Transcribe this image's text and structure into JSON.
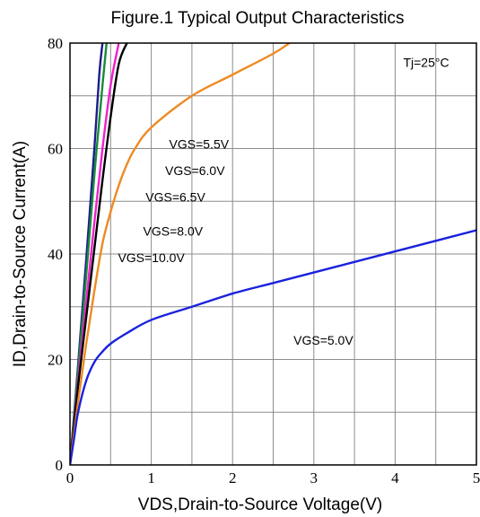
{
  "chart_data": {
    "type": "line",
    "title": "Figure.1 Typical Output Characteristics",
    "xlabel": "VDS,Drain-to-Source Voltage(V)",
    "ylabel": "ID,Drain-to-Source Current(A)",
    "xlim": [
      0,
      5
    ],
    "ylim": [
      0,
      80
    ],
    "xticks": [
      "0",
      "1",
      "2",
      "3",
      "4",
      "5"
    ],
    "yticks": [
      "0",
      "20",
      "40",
      "60",
      "80"
    ],
    "grid": true,
    "condition": "Tj=25°C",
    "series": [
      {
        "name": "VGS=10.0V",
        "color": "#1c1c8c",
        "points": [
          [
            0,
            0
          ],
          [
            0.1,
            19
          ],
          [
            0.2,
            39
          ],
          [
            0.3,
            60
          ],
          [
            0.36,
            74
          ],
          [
            0.4,
            80
          ]
        ]
      },
      {
        "name": "VGS=8.0V",
        "color": "#1a8a3a",
        "points": [
          [
            0,
            0
          ],
          [
            0.1,
            18
          ],
          [
            0.2,
            36
          ],
          [
            0.3,
            55
          ],
          [
            0.4,
            72
          ],
          [
            0.45,
            80
          ]
        ]
      },
      {
        "name": "VGS=6.5V",
        "color": "#ee22cc",
        "points": [
          [
            0,
            0
          ],
          [
            0.1,
            16
          ],
          [
            0.2,
            31
          ],
          [
            0.3,
            46
          ],
          [
            0.4,
            60
          ],
          [
            0.5,
            72
          ],
          [
            0.6,
            80
          ]
        ]
      },
      {
        "name": "VGS=6.0V",
        "color": "#000000",
        "points": [
          [
            0,
            0
          ],
          [
            0.1,
            15
          ],
          [
            0.2,
            28
          ],
          [
            0.3,
            41
          ],
          [
            0.4,
            54
          ],
          [
            0.5,
            66
          ],
          [
            0.6,
            76
          ],
          [
            0.7,
            80
          ]
        ]
      },
      {
        "name": "VGS=5.5V",
        "color": "#ee8a22",
        "points": [
          [
            0,
            0
          ],
          [
            0.1,
            12
          ],
          [
            0.2,
            23
          ],
          [
            0.3,
            33
          ],
          [
            0.4,
            42
          ],
          [
            0.5,
            48
          ],
          [
            0.6,
            53
          ],
          [
            0.7,
            57
          ],
          [
            0.8,
            60
          ],
          [
            1.0,
            64
          ],
          [
            1.5,
            70
          ],
          [
            2.0,
            74
          ],
          [
            2.5,
            78
          ],
          [
            2.7,
            80
          ]
        ]
      },
      {
        "name": "VGS=5.0V",
        "color": "#1a22dd",
        "points": [
          [
            0,
            0
          ],
          [
            0.05,
            5
          ],
          [
            0.1,
            10
          ],
          [
            0.2,
            16
          ],
          [
            0.3,
            19.5
          ],
          [
            0.4,
            21.5
          ],
          [
            0.5,
            23
          ],
          [
            0.7,
            25
          ],
          [
            1.0,
            27.5
          ],
          [
            1.5,
            30
          ],
          [
            2.0,
            32.5
          ],
          [
            2.5,
            34.5
          ],
          [
            3.0,
            36.5
          ],
          [
            3.5,
            38.5
          ],
          [
            4.0,
            40.5
          ],
          [
            4.5,
            42.5
          ],
          [
            5.0,
            44.5
          ]
        ]
      }
    ],
    "annotations": [
      {
        "text": "VGS=5.5V",
        "x": 1.22,
        "y": 60
      },
      {
        "text": "VGS=6.0V",
        "x": 1.17,
        "y": 55
      },
      {
        "text": "VGS=6.5V",
        "x": 0.93,
        "y": 50
      },
      {
        "text": "VGS=8.0V",
        "x": 0.9,
        "y": 43.5
      },
      {
        "text": "VGS=10.0V",
        "x": 0.59,
        "y": 38.5
      },
      {
        "text": "VGS=5.0V",
        "x": 2.75,
        "y": 22.8
      },
      {
        "text": "Tj=25°C",
        "x": 4.1,
        "y": 75.5
      }
    ]
  }
}
